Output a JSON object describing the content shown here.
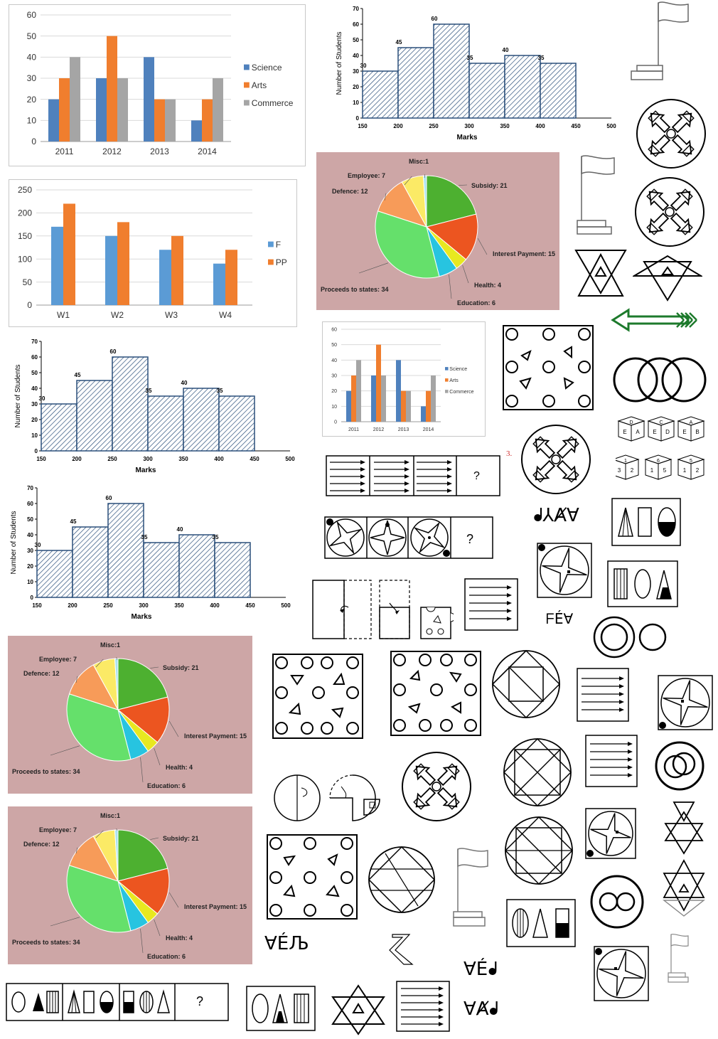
{
  "bar_charts": [
    {
      "id": "bar1",
      "categories": [
        "2011",
        "2012",
        "2013",
        "2014"
      ],
      "series": [
        {
          "name": "Science",
          "color": "#4f81bd",
          "values": [
            20,
            30,
            40,
            10
          ]
        },
        {
          "name": "Arts",
          "color": "#f07e2e",
          "values": [
            30,
            50,
            20,
            20
          ]
        },
        {
          "name": "Commerce",
          "color": "#a5a5a5",
          "values": [
            40,
            30,
            20,
            30
          ]
        }
      ],
      "yticks": [
        "0",
        "10",
        "20",
        "30",
        "40",
        "50",
        "60"
      ]
    },
    {
      "id": "bar2",
      "categories": [
        "W1",
        "W2",
        "W3",
        "W4"
      ],
      "series": [
        {
          "name": "F",
          "color": "#5b9bd5",
          "values": [
            170,
            150,
            120,
            90
          ]
        },
        {
          "name": "PP",
          "color": "#f07e2e",
          "values": [
            220,
            180,
            150,
            120
          ]
        }
      ],
      "yticks": [
        "0",
        "50",
        "100",
        "150",
        "200",
        "250"
      ]
    },
    {
      "id": "bar3",
      "categories": [
        "2011",
        "2012",
        "2013",
        "2014"
      ],
      "series": [
        {
          "name": "Science",
          "color": "#4f81bd",
          "values": [
            20,
            30,
            40,
            10
          ]
        },
        {
          "name": "Arts",
          "color": "#f07e2e",
          "values": [
            30,
            50,
            20,
            20
          ]
        },
        {
          "name": "Commerce",
          "color": "#a5a5a5",
          "values": [
            40,
            30,
            20,
            30
          ]
        }
      ],
      "yticks": [
        "0",
        "10",
        "20",
        "30",
        "40",
        "50",
        "60"
      ]
    }
  ],
  "histogram": {
    "ylabel": "Number of Students",
    "xlabel": "Marks",
    "xticks": [
      "150",
      "200",
      "250",
      "300",
      "350",
      "400",
      "450",
      "500"
    ],
    "yticks": [
      "0",
      "10",
      "20",
      "30",
      "40",
      "50",
      "60",
      "70"
    ],
    "values": [
      30,
      45,
      60,
      35,
      40,
      35
    ],
    "value_labels": [
      "30",
      "45",
      "60",
      "35",
      "40",
      "35"
    ]
  },
  "pie": {
    "slices": [
      {
        "label": "Subsidy: 21",
        "value": 21,
        "color": "#4db030"
      },
      {
        "label": "Interest Payment: 15",
        "value": 15,
        "color": "#ec5520"
      },
      {
        "label": "Health: 4",
        "value": 4,
        "color": "#e8e820"
      },
      {
        "label": "Education: 6",
        "value": 6,
        "color": "#27c4e0"
      },
      {
        "label": "Proceeds to states: 34",
        "value": 34,
        "color": "#65e06b"
      },
      {
        "label": "Defence: 12",
        "value": 12,
        "color": "#f79b59"
      },
      {
        "label": "Employee: 7",
        "value": 7,
        "color": "#fbea66"
      },
      {
        "label": "Misc:1",
        "value": 1,
        "color": "#a9e3f2"
      }
    ]
  },
  "chart_data": [
    {
      "type": "bar",
      "categories": [
        "2011",
        "2012",
        "2013",
        "2014"
      ],
      "series": [
        {
          "name": "Science",
          "values": [
            20,
            30,
            40,
            10
          ]
        },
        {
          "name": "Arts",
          "values": [
            30,
            50,
            20,
            20
          ]
        },
        {
          "name": "Commerce",
          "values": [
            40,
            30,
            20,
            30
          ]
        }
      ],
      "ylim": [
        0,
        60
      ]
    },
    {
      "type": "bar",
      "categories": [
        "W1",
        "W2",
        "W3",
        "W4"
      ],
      "series": [
        {
          "name": "F",
          "values": [
            170,
            150,
            120,
            90
          ]
        },
        {
          "name": "PP",
          "values": [
            220,
            180,
            150,
            120
          ]
        }
      ],
      "ylim": [
        0,
        250
      ]
    },
    {
      "type": "bar",
      "x": [
        175,
        225,
        275,
        325,
        375,
        425
      ],
      "values": [
        30,
        45,
        60,
        35,
        40,
        35
      ],
      "xlabel": "Marks",
      "ylabel": "Number of Students",
      "xlim": [
        150,
        500
      ],
      "ylim": [
        0,
        70
      ]
    },
    {
      "type": "pie",
      "categories": [
        "Subsidy",
        "Interest Payment",
        "Health",
        "Education",
        "Proceeds to states",
        "Defence",
        "Employee",
        "Misc"
      ],
      "values": [
        21,
        15,
        4,
        6,
        34,
        12,
        7,
        1
      ]
    }
  ],
  "question_mark": "?",
  "symbol_strings": [
    "ᖱ⅄Ⱥ∀",
    "ᖴÉ∀",
    "∀ÉЉ",
    "∀Éᖱ",
    "∀Ⱥᖱ"
  ],
  "cube_letters": [
    [
      "D",
      "E",
      "A"
    ],
    [
      "C",
      "E",
      "D"
    ],
    [
      "A",
      "E",
      "B"
    ]
  ],
  "cube_numbers": [
    [
      "1",
      "3",
      "2"
    ],
    [
      "6",
      "1",
      "5"
    ],
    [
      "5",
      "1",
      "2"
    ]
  ],
  "stray_marks": [
    "3."
  ]
}
